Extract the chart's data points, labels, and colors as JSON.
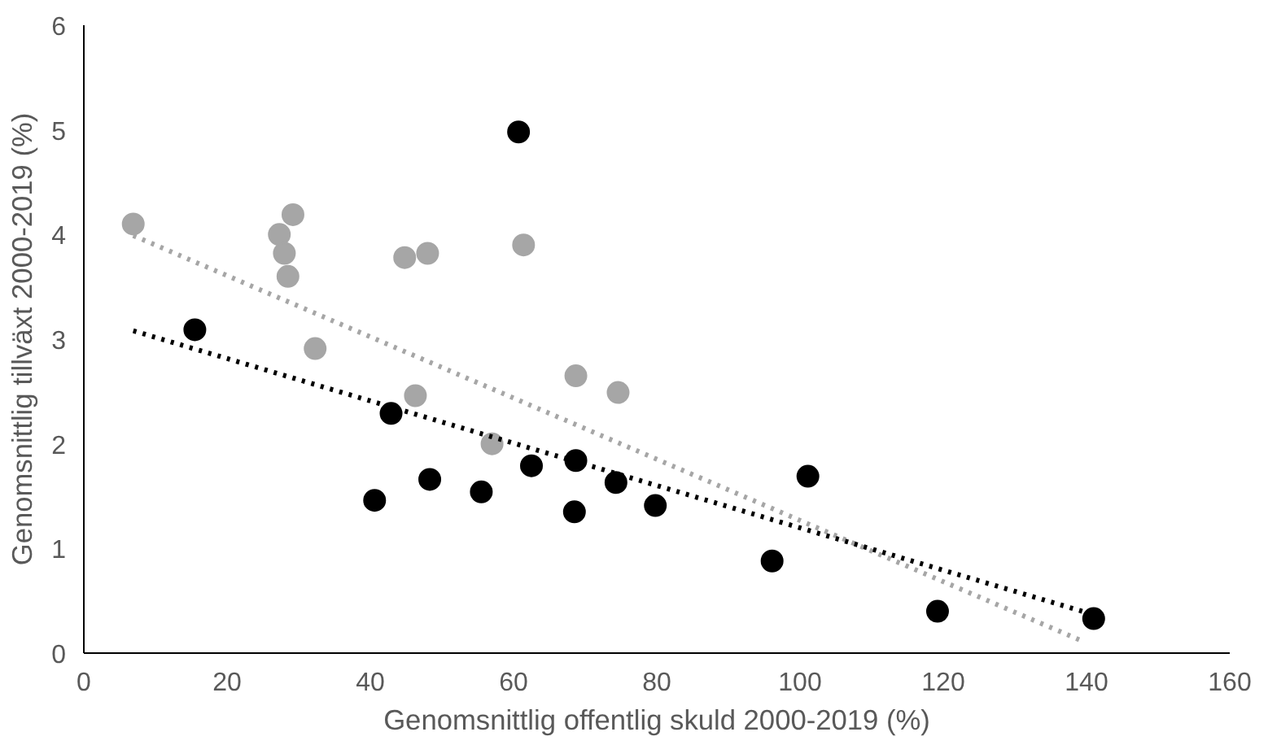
{
  "chart_data": {
    "type": "scatter",
    "xlabel": "Genomsnittlig offentlig skuld 2000-2019 (%)",
    "ylabel": "Genomsnittlig tillväxt 2000-2019 (%)",
    "xlim": [
      0,
      160
    ],
    "ylim": [
      0,
      6
    ],
    "xticks": [
      0,
      20,
      40,
      60,
      80,
      100,
      120,
      140,
      160
    ],
    "yticks": [
      0,
      1,
      2,
      3,
      4,
      5,
      6
    ],
    "grid": false,
    "marker": "circle",
    "series": [
      {
        "color": "#a6a6a6",
        "x": [
          6.9,
          27.3,
          29.2,
          28.0,
          28.5,
          32.3,
          44.8,
          48.0,
          46.3,
          57.0,
          61.4,
          68.7,
          74.6
        ],
        "values": [
          4.1,
          4.0,
          4.19,
          3.82,
          3.6,
          2.91,
          3.78,
          3.82,
          2.46,
          2.0,
          3.9,
          2.65,
          2.49
        ]
      },
      {
        "color": "#000000",
        "x": [
          15.5,
          60.7,
          42.9,
          40.6,
          48.3,
          55.5,
          62.5,
          68.7,
          68.5,
          74.3,
          79.8,
          101.1,
          96.1,
          119.2,
          141.0
        ],
        "values": [
          3.09,
          4.98,
          2.29,
          1.46,
          1.66,
          1.54,
          1.79,
          1.84,
          1.35,
          1.63,
          1.41,
          1.69,
          0.88,
          0.4,
          0.33
        ]
      },
      {
        "type": "line",
        "line_style": "dotted",
        "marker": "none",
        "color": "#a6a6a6",
        "x": [
          6.9,
          139.6
        ],
        "values": [
          3.99,
          0.11
        ]
      },
      {
        "type": "line",
        "line_style": "dotted",
        "marker": "none",
        "color": "#000000",
        "x": [
          6.9,
          139.4
        ],
        "values": [
          3.08,
          0.4
        ]
      }
    ]
  }
}
